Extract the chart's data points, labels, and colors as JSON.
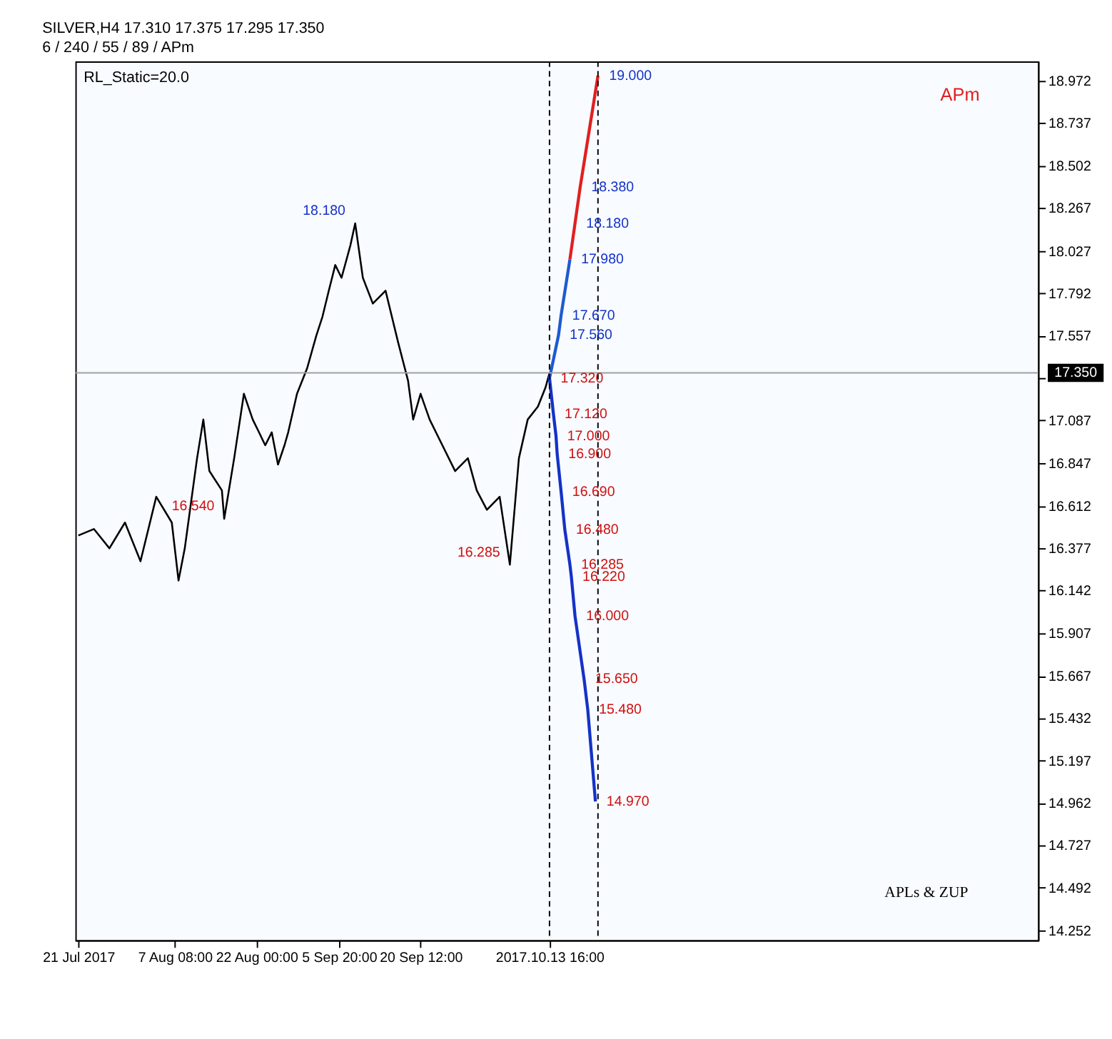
{
  "chart_data": {
    "type": "line",
    "title": "SILVER,H4  17.310 17.375 17.295 17.350",
    "subtitle": "6 / 240 / 55 / 89 / APm",
    "series": [
      {
        "color": "#000000",
        "x": [
          "2017-07-21T00:00",
          "2017-07-23T19:00",
          "2017-07-26T14:00",
          "2017-07-29T09:00",
          "2017-08-01T04:00",
          "2017-08-04T00:00",
          "2017-08-06T19:00",
          "2017-08-08T00:00",
          "2017-08-09T03:00",
          "2017-08-11T08:00",
          "2017-08-12T11:00",
          "2017-08-13T13:00",
          "2017-08-15T19:00",
          "2017-08-16T05:00",
          "2017-08-18T00:00",
          "2017-08-19T18:00",
          "2017-08-21T08:00",
          "2017-08-22T11:00",
          "2017-08-23T14:00",
          "2017-08-24T18:00",
          "2017-08-25T21:00",
          "2017-08-27T01:00",
          "2017-08-27T17:00",
          "2017-08-29T07:00",
          "2017-08-31T03:00",
          "2017-09-01T18:00",
          "2017-09-02T21:00",
          "2017-09-04T00:00",
          "2017-09-05T04:00",
          "2017-09-06T07:00",
          "2017-09-07T21:00",
          "2017-09-08T18:00",
          "2017-09-10T03:00",
          "2017-09-11T22:00",
          "2017-09-14T05:00",
          "2017-09-16T11:00",
          "2017-09-18T06:00",
          "2017-09-19T04:00",
          "2017-09-20T12:00",
          "2017-09-22T03:00",
          "2017-09-24T10:00",
          "2017-09-26T17:00",
          "2017-09-29T00:00",
          "2017-09-30T14:00",
          "2017-10-02T10:00",
          "2017-10-04T17:00",
          "2017-10-06T13:00",
          "2017-10-08T04:00",
          "2017-10-09T18:00",
          "2017-10-11T14:00",
          "2017-10-12T23:00",
          "2017-10-13T16:00"
        ],
        "values": [
          16.447,
          16.483,
          16.376,
          16.519,
          16.304,
          16.662,
          16.519,
          16.197,
          16.376,
          16.876,
          17.091,
          16.805,
          16.698,
          16.54,
          16.876,
          17.234,
          17.091,
          17.02,
          16.948,
          17.02,
          16.841,
          16.948,
          17.02,
          17.234,
          17.377,
          17.556,
          17.663,
          17.806,
          17.949,
          17.878,
          18.057,
          18.18,
          17.878,
          17.735,
          17.806,
          17.52,
          17.306,
          17.091,
          17.234,
          17.091,
          16.948,
          16.805,
          16.876,
          16.698,
          16.59,
          16.662,
          16.285,
          16.876,
          17.091,
          17.163,
          17.27,
          17.35
        ]
      },
      {
        "color": "#1e5ad2",
        "x": [
          "2017-10-13T16:00",
          "2017-10-15T07:00",
          "2017-10-15T18:00",
          "2017-10-17T08:00"
        ],
        "values": [
          17.32,
          17.56,
          17.67,
          17.98
        ]
      },
      {
        "color": "#e02020",
        "x": [
          "2017-10-17T08:00",
          "2017-10-18T06:00",
          "2017-10-19T04:00",
          "2017-10-22T09:00"
        ],
        "values": [
          17.98,
          18.18,
          18.38,
          19.0
        ]
      },
      {
        "color": "#1432c8",
        "x": [
          "2017-10-13T16:00",
          "2017-10-14T09:00",
          "2017-10-14T20:00",
          "2017-10-15T01:00",
          "2017-10-15T18:00",
          "2017-10-16T10:00",
          "2017-10-17T08:00",
          "2017-10-17T14:00",
          "2017-10-18T06:00",
          "2017-10-19T21:00",
          "2017-10-20T13:00",
          "2017-10-21T22:00"
        ],
        "values": [
          17.32,
          17.12,
          17.0,
          16.9,
          16.69,
          16.48,
          16.285,
          16.22,
          16.0,
          15.65,
          15.48,
          14.97
        ]
      }
    ],
    "annotations": [
      "RL_Static=20.0",
      "APm",
      "APLs & ZUP",
      {
        "text": "18.180",
        "x": "2017-09-08T18:00",
        "y": 18.18
      },
      {
        "text": "16.540",
        "x": "2017-08-16T05:00",
        "y": 16.54
      },
      {
        "text": "16.285",
        "x": "2017-10-06T13:00",
        "y": 16.285
      },
      {
        "text": "19.000",
        "x": "2017-10-22T09:00",
        "y": 19.0
      },
      {
        "text": "18.380",
        "x": "2017-10-19T04:00",
        "y": 18.38
      },
      {
        "text": "18.180",
        "x": "2017-10-18T06:00",
        "y": 18.18
      },
      {
        "text": "17.980",
        "x": "2017-10-17T08:00",
        "y": 17.98
      },
      {
        "text": "17.670",
        "x": "2017-10-15T18:00",
        "y": 17.67
      },
      {
        "text": "17.560",
        "x": "2017-10-15T07:00",
        "y": 17.56
      },
      {
        "text": "17.320",
        "x": "2017-10-13T16:00",
        "y": 17.32
      },
      {
        "text": "17.120",
        "x": "2017-10-14T09:00",
        "y": 17.12
      },
      {
        "text": "17.000",
        "x": "2017-10-14T20:00",
        "y": 17.0
      },
      {
        "text": "16.900",
        "x": "2017-10-15T01:00",
        "y": 16.9
      },
      {
        "text": "16.690",
        "x": "2017-10-15T18:00",
        "y": 16.69
      },
      {
        "text": "16.480",
        "x": "2017-10-16T10:00",
        "y": 16.48
      },
      {
        "text": "16.285",
        "x": "2017-10-17T08:00",
        "y": 16.285
      },
      {
        "text": "16.220",
        "x": "2017-10-17T14:00",
        "y": 16.22
      },
      {
        "text": "16.000",
        "x": "2017-10-18T06:00",
        "y": 16.0
      },
      {
        "text": "15.650",
        "x": "2017-10-19T21:00",
        "y": 15.65
      },
      {
        "text": "15.480",
        "x": "2017-10-20T13:00",
        "y": 15.48
      },
      {
        "text": "14.970",
        "x": "2017-10-21T22:00",
        "y": 14.97
      }
    ],
    "xlim": [
      "2017-07-20T11:00",
      "2018-01-09T11:00"
    ],
    "xticks": [
      {
        "value": "2017-07-21T00:00",
        "label": "21 Jul 2017"
      },
      {
        "value": "2017-08-07T08:00",
        "label": "7 Aug 08:00"
      },
      {
        "value": "2017-08-22T00:00",
        "label": "22 Aug 00:00"
      },
      {
        "value": "2017-09-05T20:00",
        "label": "5 Sep 20:00"
      },
      {
        "value": "2017-09-20T12:00",
        "label": "20 Sep 12:00"
      },
      {
        "value": "2017-10-13T16:00",
        "label": "2017.10.13 16:00"
      }
    ],
    "ylim": [
      14.2,
      19.08
    ],
    "yticks": [
      18.972,
      18.737,
      18.502,
      18.267,
      18.027,
      17.792,
      17.557,
      {
        "value": 17.322,
        "label": null
      },
      17.087,
      16.847,
      16.612,
      16.377,
      16.142,
      15.907,
      15.667,
      15.432,
      15.197,
      14.962,
      14.727,
      14.492,
      14.252
    ],
    "ref_lines": [
      {
        "axis": "y",
        "value": 17.35,
        "label": "17.350",
        "color": "#a0a0a0",
        "line_style": "solid"
      },
      {
        "axis": "x",
        "value": "2017-10-13T16:00",
        "color": "#000000",
        "line_style": "dashed"
      },
      {
        "axis": "x",
        "value": "2017-10-22T09:00",
        "color": "#000000",
        "line_style": "dashed"
      }
    ],
    "grid": false
  }
}
